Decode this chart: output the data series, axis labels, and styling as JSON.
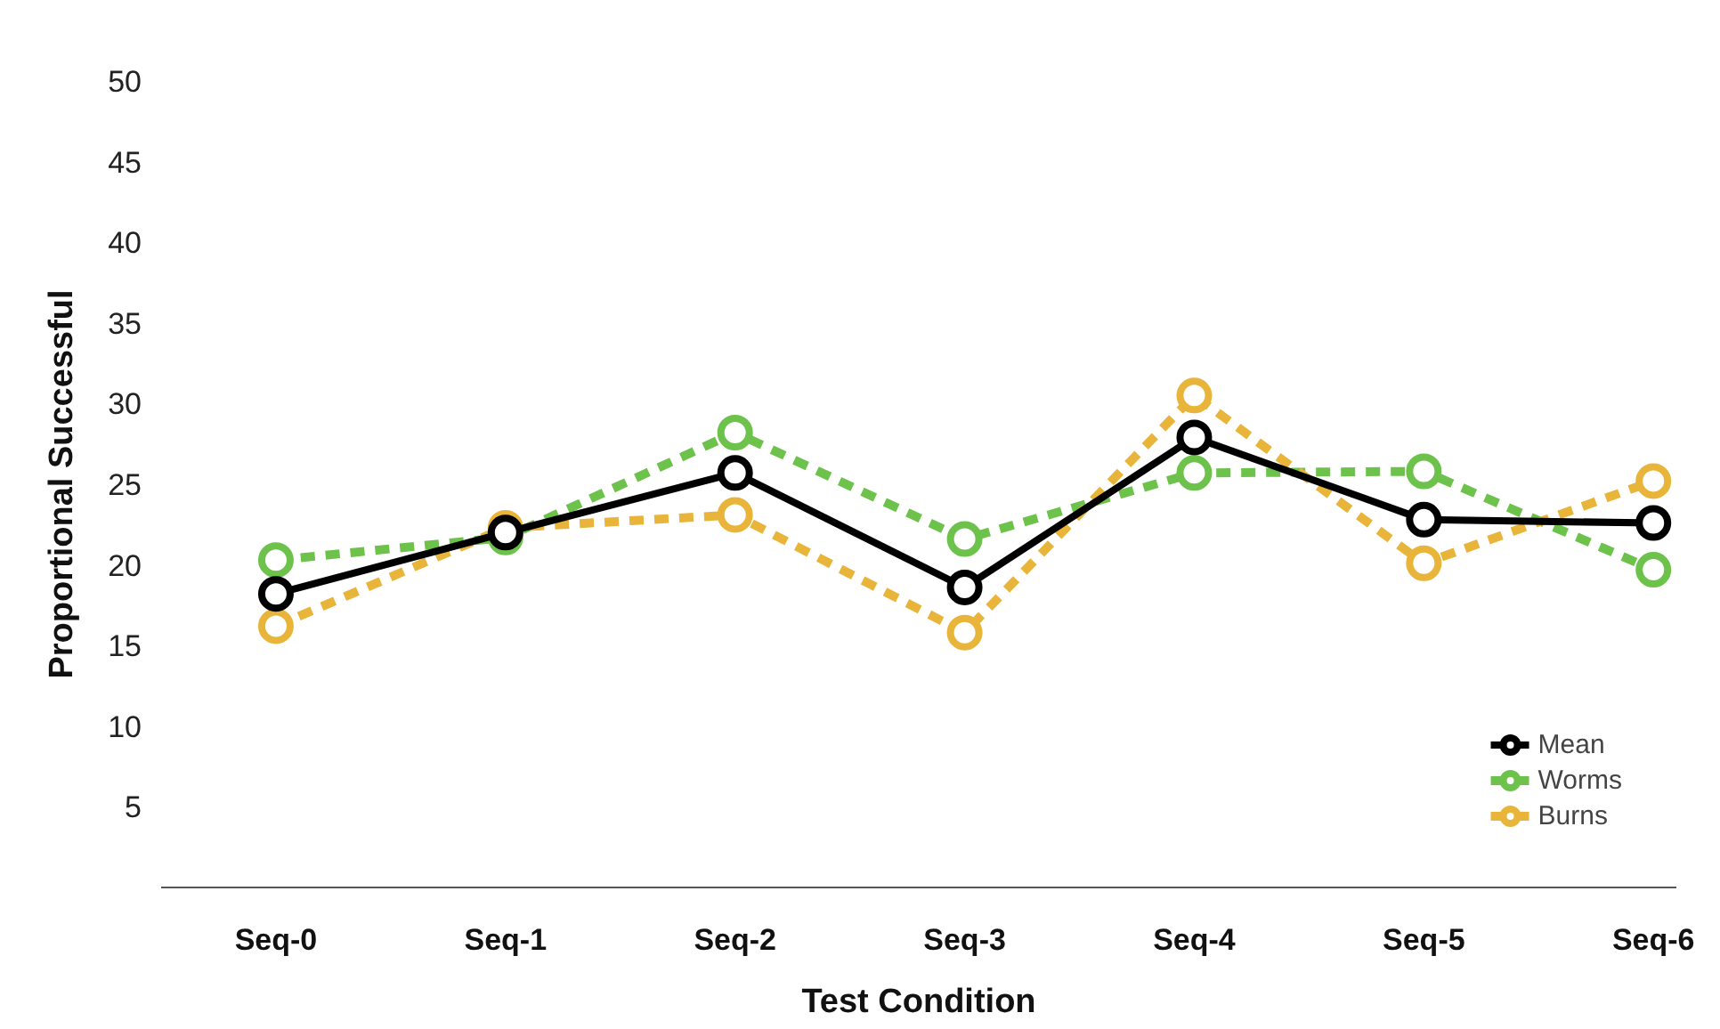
{
  "chart_data": {
    "type": "line",
    "xlabel": "Test Condition",
    "ylabel": "Proportional Successful",
    "categories": [
      "Seq-0",
      "Seq-1",
      "Seq-2",
      "Seq-3",
      "Seq-4",
      "Seq-5",
      "Seq-6"
    ],
    "series": [
      {
        "name": "Worms",
        "color": "#6cc24a",
        "line_style": "dashed",
        "values": [
          20.3,
          21.7,
          28.2,
          21.6,
          25.7,
          25.8,
          19.7
        ]
      },
      {
        "name": "Burns",
        "color": "#e8b53a",
        "line_style": "dashed",
        "values": [
          16.2,
          22.3,
          23.1,
          15.8,
          30.5,
          20.1,
          25.2
        ]
      },
      {
        "name": "Mean",
        "color": "#000000",
        "line_style": "solid",
        "values": [
          18.2,
          22.0,
          25.7,
          18.6,
          27.9,
          22.8,
          22.6
        ]
      }
    ],
    "ylim": [
      0,
      50
    ],
    "yticks": [
      5,
      10,
      15,
      20,
      25,
      30,
      35,
      40,
      45,
      50
    ],
    "grid": false,
    "legend": "bottom right",
    "marker": "circle"
  }
}
